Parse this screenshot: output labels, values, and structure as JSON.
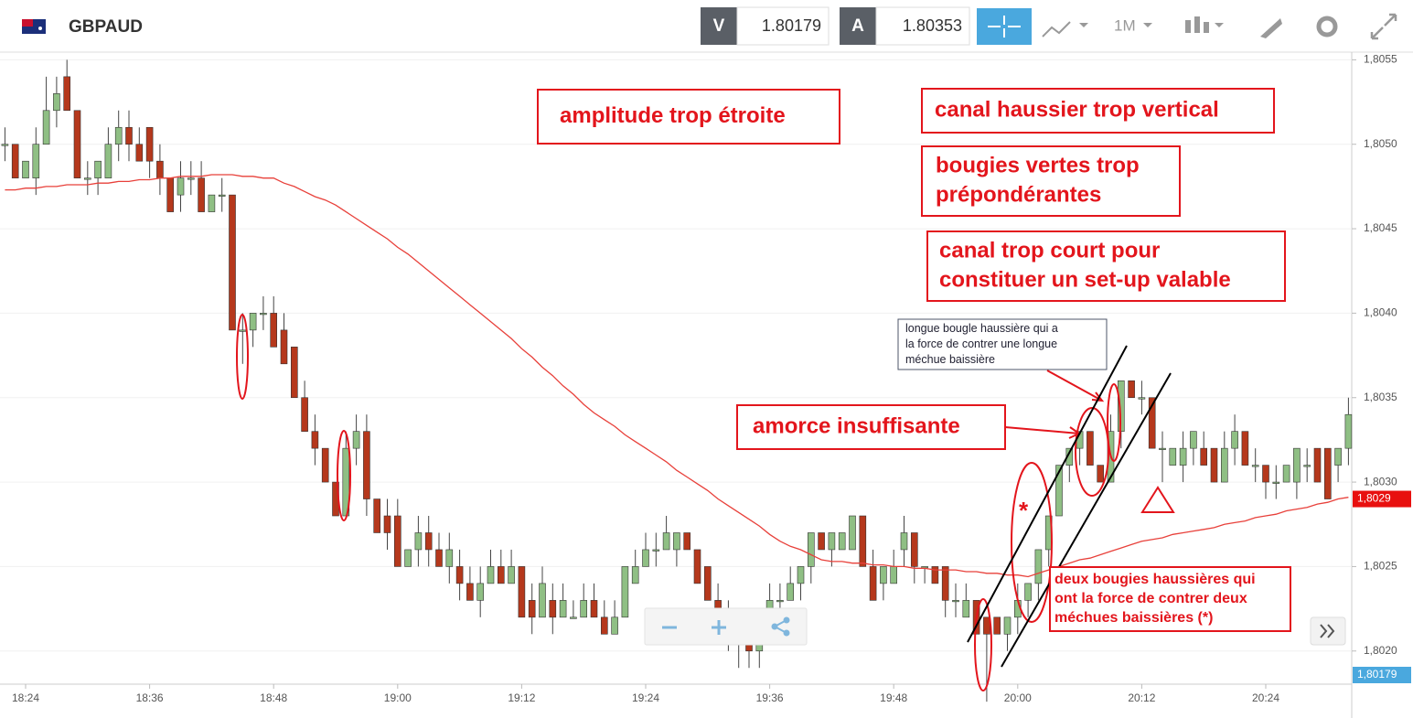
{
  "header": {
    "symbol": "GBPAUD",
    "bid_label": "V",
    "bid": 1.80179,
    "ask_label": "A",
    "ask": 1.80353,
    "timeframe": "1M"
  },
  "chart_data": {
    "type": "candlestick",
    "categories": [
      null,
      null,
      "18:24",
      null,
      null,
      null,
      null,
      null,
      null,
      null,
      null,
      null,
      null,
      null,
      "18:36",
      null,
      null,
      null,
      null,
      null,
      null,
      null,
      null,
      null,
      null,
      null,
      "18:48",
      null,
      null,
      null,
      null,
      null,
      null,
      null,
      null,
      null,
      null,
      null,
      "19:00",
      null,
      null,
      null,
      null,
      null,
      null,
      null,
      null,
      null,
      null,
      null,
      "19:12",
      null,
      null,
      null,
      null,
      null,
      null,
      null,
      null,
      null,
      null,
      null,
      "19:24",
      null,
      null,
      null,
      null,
      null,
      null,
      null,
      null,
      null,
      null,
      null,
      "19:36",
      null,
      null,
      null,
      null,
      null,
      null,
      null,
      null,
      null,
      null,
      null,
      "19:48",
      null,
      null,
      null,
      null,
      null,
      null,
      null,
      null,
      null,
      null,
      null,
      "20:00",
      null,
      null,
      null,
      null,
      null,
      null,
      null,
      null,
      null,
      null,
      null,
      "20:12",
      null,
      null,
      null,
      null,
      null,
      null,
      null,
      null,
      null,
      null,
      null,
      "20:24",
      null,
      null,
      null,
      null,
      null,
      null,
      null,
      null
    ],
    "ohlc": [
      [
        1.805,
        1.8051,
        1.8049,
        1.805
      ],
      [
        1.805,
        1.805,
        1.8048,
        1.8048
      ],
      [
        1.8048,
        1.8049,
        1.8048,
        1.8049
      ],
      [
        1.8048,
        1.8051,
        1.8047,
        1.805
      ],
      [
        1.805,
        1.8054,
        1.805,
        1.8052
      ],
      [
        1.8052,
        1.8054,
        1.8051,
        1.8053
      ],
      [
        1.8054,
        1.8055,
        1.8052,
        1.8052
      ],
      [
        1.8052,
        1.8052,
        1.8048,
        1.8048
      ],
      [
        1.8048,
        1.8049,
        1.8047,
        1.8048
      ],
      [
        1.8048,
        1.8049,
        1.8047,
        1.8049
      ],
      [
        1.8048,
        1.8051,
        1.8048,
        1.805
      ],
      [
        1.805,
        1.8052,
        1.8049,
        1.8051
      ],
      [
        1.8051,
        1.8052,
        1.8049,
        1.805
      ],
      [
        1.805,
        1.8051,
        1.8049,
        1.8049
      ],
      [
        1.8051,
        1.8051,
        1.8048,
        1.8049
      ],
      [
        1.8049,
        1.805,
        1.8047,
        1.8048
      ],
      [
        1.8048,
        1.8048,
        1.8046,
        1.8046
      ],
      [
        1.8047,
        1.8049,
        1.8046,
        1.8048
      ],
      [
        1.8048,
        1.8049,
        1.8047,
        1.8048
      ],
      [
        1.8048,
        1.8049,
        1.8046,
        1.8046
      ],
      [
        1.8046,
        1.8047,
        1.8046,
        1.8047
      ],
      [
        1.8047,
        1.8048,
        1.8046,
        1.8047
      ],
      [
        1.8047,
        1.8047,
        1.8039,
        1.8039
      ],
      [
        1.8039,
        1.804,
        1.8037,
        1.8039
      ],
      [
        1.8039,
        1.804,
        1.8038,
        1.804
      ],
      [
        1.804,
        1.8041,
        1.8039,
        1.804
      ],
      [
        1.804,
        1.8041,
        1.8038,
        1.8038
      ],
      [
        1.8039,
        1.804,
        1.8037,
        1.8037
      ],
      [
        1.8038,
        1.8038,
        1.8035,
        1.8035
      ],
      [
        1.8035,
        1.8036,
        1.8033,
        1.8033
      ],
      [
        1.8033,
        1.8034,
        1.8031,
        1.8032
      ],
      [
        1.8032,
        1.8032,
        1.803,
        1.803
      ],
      [
        1.803,
        1.803,
        1.8028,
        1.8028
      ],
      [
        1.8028,
        1.8033,
        1.8028,
        1.8032
      ],
      [
        1.8032,
        1.8034,
        1.8031,
        1.8033
      ],
      [
        1.8033,
        1.8034,
        1.8028,
        1.8029
      ],
      [
        1.8029,
        1.8029,
        1.8027,
        1.8027
      ],
      [
        1.8028,
        1.8029,
        1.8026,
        1.8027
      ],
      [
        1.8028,
        1.8029,
        1.8025,
        1.8025
      ],
      [
        1.8025,
        1.8026,
        1.8025,
        1.8026
      ],
      [
        1.8026,
        1.8028,
        1.8025,
        1.8027
      ],
      [
        1.8027,
        1.8028,
        1.8025,
        1.8026
      ],
      [
        1.8026,
        1.8027,
        1.8025,
        1.8025
      ],
      [
        1.8025,
        1.8027,
        1.8024,
        1.8026
      ],
      [
        1.8025,
        1.8026,
        1.8023,
        1.8024
      ],
      [
        1.8024,
        1.8025,
        1.8023,
        1.8023
      ],
      [
        1.8023,
        1.8025,
        1.8022,
        1.8024
      ],
      [
        1.8024,
        1.8026,
        1.8024,
        1.8025
      ],
      [
        1.8025,
        1.8026,
        1.8024,
        1.8024
      ],
      [
        1.8024,
        1.8026,
        1.8024,
        1.8025
      ],
      [
        1.8025,
        1.8025,
        1.8022,
        1.8022
      ],
      [
        1.8023,
        1.8024,
        1.8021,
        1.8022
      ],
      [
        1.8022,
        1.8025,
        1.8022,
        1.8024
      ],
      [
        1.8023,
        1.8024,
        1.8021,
        1.8022
      ],
      [
        1.8022,
        1.8024,
        1.8022,
        1.8023
      ],
      [
        1.8022,
        1.8023,
        1.8022,
        1.8022
      ],
      [
        1.8022,
        1.8024,
        1.8022,
        1.8023
      ],
      [
        1.8023,
        1.8024,
        1.8022,
        1.8022
      ],
      [
        1.8022,
        1.8023,
        1.8021,
        1.8021
      ],
      [
        1.8021,
        1.8023,
        1.8021,
        1.8022
      ],
      [
        1.8022,
        1.8025,
        1.8022,
        1.8025
      ],
      [
        1.8024,
        1.8026,
        1.8024,
        1.8025
      ],
      [
        1.8025,
        1.8027,
        1.8025,
        1.8026
      ],
      [
        1.8026,
        1.8027,
        1.8025,
        1.8026
      ],
      [
        1.8026,
        1.8028,
        1.8026,
        1.8027
      ],
      [
        1.8026,
        1.8027,
        1.8025,
        1.8027
      ],
      [
        1.8027,
        1.8027,
        1.8026,
        1.8026
      ],
      [
        1.8026,
        1.8026,
        1.8024,
        1.8024
      ],
      [
        1.8025,
        1.8025,
        1.8023,
        1.8023
      ],
      [
        1.8023,
        1.8024,
        1.8022,
        1.8022
      ],
      [
        1.8022,
        1.8023,
        1.802,
        1.8021
      ],
      [
        1.8021,
        1.8022,
        1.8019,
        1.8021
      ],
      [
        1.8021,
        1.8022,
        1.8019,
        1.802
      ],
      [
        1.802,
        1.8022,
        1.8019,
        1.8022
      ],
      [
        1.8022,
        1.8024,
        1.8021,
        1.8023
      ],
      [
        1.8023,
        1.8024,
        1.8022,
        1.8023
      ],
      [
        1.8023,
        1.8025,
        1.8023,
        1.8024
      ],
      [
        1.8024,
        1.8025,
        1.8023,
        1.8025
      ],
      [
        1.8025,
        1.8027,
        1.8024,
        1.8027
      ],
      [
        1.8027,
        1.8027,
        1.8026,
        1.8026
      ],
      [
        1.8026,
        1.8027,
        1.8025,
        1.8027
      ],
      [
        1.8026,
        1.8027,
        1.8026,
        1.8027
      ],
      [
        1.8026,
        1.8028,
        1.8026,
        1.8028
      ],
      [
        1.8028,
        1.8028,
        1.8025,
        1.8025
      ],
      [
        1.8025,
        1.8026,
        1.8023,
        1.8023
      ],
      [
        1.8024,
        1.8025,
        1.8023,
        1.8025
      ],
      [
        1.8024,
        1.8026,
        1.8024,
        1.8025
      ],
      [
        1.8026,
        1.8028,
        1.8025,
        1.8027
      ],
      [
        1.8027,
        1.8027,
        1.8024,
        1.8025
      ],
      [
        1.8025,
        1.8025,
        1.8024,
        1.8025
      ],
      [
        1.8025,
        1.8025,
        1.8024,
        1.8024
      ],
      [
        1.8025,
        1.8025,
        1.8022,
        1.8023
      ],
      [
        1.8023,
        1.8024,
        1.8022,
        1.8023
      ],
      [
        1.8022,
        1.8024,
        1.8022,
        1.8023
      ],
      [
        1.8023,
        1.8023,
        1.8021,
        1.8021
      ],
      [
        1.8022,
        1.8022,
        1.8017,
        1.8021
      ],
      [
        1.8022,
        1.8022,
        1.8021,
        1.8021
      ],
      [
        1.8021,
        1.8022,
        1.802,
        1.8022
      ],
      [
        1.8022,
        1.8024,
        1.8021,
        1.8023
      ],
      [
        1.8023,
        1.8024,
        1.8022,
        1.8024
      ],
      [
        1.8024,
        1.8026,
        1.8023,
        1.8026
      ],
      [
        1.8026,
        1.8028,
        1.8025,
        1.8028
      ],
      [
        1.8028,
        1.8031,
        1.8028,
        1.8031
      ],
      [
        1.8031,
        1.8032,
        1.803,
        1.8032
      ],
      [
        1.8032,
        1.8033,
        1.8031,
        1.8033
      ],
      [
        1.8033,
        1.8033,
        1.8031,
        1.8031
      ],
      [
        1.8031,
        1.8031,
        1.803,
        1.803
      ],
      [
        1.803,
        1.8034,
        1.803,
        1.8033
      ],
      [
        1.8033,
        1.8036,
        1.8032,
        1.8036
      ],
      [
        1.8036,
        1.8036,
        1.8035,
        1.8035
      ],
      [
        1.8035,
        1.8036,
        1.8034,
        1.8035
      ],
      [
        1.8035,
        1.8035,
        1.8032,
        1.8032
      ],
      [
        1.8032,
        1.8033,
        1.803,
        1.8032
      ],
      [
        1.8031,
        1.8032,
        1.8031,
        1.8032
      ],
      [
        1.8031,
        1.8033,
        1.803,
        1.8032
      ],
      [
        1.8032,
        1.8033,
        1.8031,
        1.8033
      ],
      [
        1.8032,
        1.8033,
        1.8031,
        1.8031
      ],
      [
        1.8032,
        1.8032,
        1.803,
        1.803
      ],
      [
        1.803,
        1.8033,
        1.803,
        1.8032
      ],
      [
        1.8032,
        1.8034,
        1.8031,
        1.8033
      ],
      [
        1.8033,
        1.8033,
        1.8031,
        1.8031
      ],
      [
        1.8031,
        1.8032,
        1.803,
        1.8031
      ],
      [
        1.8031,
        1.8031,
        1.8029,
        1.803
      ],
      [
        1.803,
        1.8031,
        1.8029,
        1.803
      ],
      [
        1.803,
        1.8031,
        1.803,
        1.8031
      ],
      [
        1.803,
        1.8032,
        1.8029,
        1.8032
      ],
      [
        1.8031,
        1.8032,
        1.803,
        1.8031
      ],
      [
        1.8032,
        1.8032,
        1.803,
        1.803
      ],
      [
        1.8032,
        1.8032,
        1.8029,
        1.8029
      ],
      [
        1.8031,
        1.8032,
        1.803,
        1.8032
      ],
      [
        1.8032,
        1.8035,
        1.8031,
        1.8034
      ]
    ],
    "up_color": "#8fbf84",
    "down_color": "#b5381c",
    "overlay": {
      "color": "#e8403a",
      "values": [
        1.80473,
        1.80473,
        1.80474,
        1.80474,
        1.80475,
        1.80475,
        1.80476,
        1.80476,
        1.80476,
        1.80477,
        1.80477,
        1.80478,
        1.80478,
        1.80479,
        1.80479,
        1.8048,
        1.8048,
        1.80481,
        1.80481,
        1.80481,
        1.80482,
        1.80482,
        1.80482,
        1.80481,
        1.80481,
        1.8048,
        1.8048,
        1.80477,
        1.80475,
        1.80472,
        1.80469,
        1.80467,
        1.80464,
        1.8046,
        1.80456,
        1.80452,
        1.80448,
        1.80444,
        1.80439,
        1.80435,
        1.8043,
        1.80425,
        1.8042,
        1.80415,
        1.8041,
        1.80405,
        1.804,
        1.80395,
        1.8039,
        1.80385,
        1.80379,
        1.80374,
        1.80368,
        1.80363,
        1.80357,
        1.80352,
        1.80346,
        1.80341,
        1.80337,
        1.80333,
        1.80328,
        1.80324,
        1.8032,
        1.80316,
        1.80312,
        1.80307,
        1.80303,
        1.80299,
        1.80295,
        1.8029,
        1.80286,
        1.80282,
        1.80278,
        1.80274,
        1.80269,
        1.80265,
        1.80262,
        1.8026,
        1.80257,
        1.80254,
        1.80253,
        1.80253,
        1.80252,
        1.80252,
        1.80251,
        1.80251,
        1.8025,
        1.8025,
        1.80249,
        1.80249,
        1.80248,
        1.80248,
        1.80248,
        1.80247,
        1.80247,
        1.80246,
        1.80246,
        1.80245,
        1.80245,
        1.80244,
        1.80246,
        1.80248,
        1.8025,
        1.80252,
        1.80254,
        1.80255,
        1.80257,
        1.80259,
        1.80261,
        1.80263,
        1.80265,
        1.80266,
        1.80267,
        1.80269,
        1.8027,
        1.80271,
        1.80272,
        1.80273,
        1.80275,
        1.80276,
        1.80277,
        1.80279,
        1.8028,
        1.80281,
        1.80283,
        1.80284,
        1.80285,
        1.80287,
        1.80288,
        1.8029,
        1.80291
      ]
    },
    "ylim": [
      1.80182,
      1.80554
    ],
    "yticks": [
      {
        "value": 1.802,
        "label": "1,8020"
      },
      {
        "value": 1.8025,
        "label": "1,8025"
      },
      {
        "value": 1.803,
        "label": "1,8030"
      },
      {
        "value": 1.8035,
        "label": "1,8035"
      },
      {
        "value": 1.804,
        "label": "1,8040"
      },
      {
        "value": 1.8045,
        "label": "1,8045"
      },
      {
        "value": 1.805,
        "label": "1,8050"
      },
      {
        "value": 1.8055,
        "label": "1,8055"
      }
    ],
    "grid": true,
    "price_tags": [
      {
        "value": 1.8029,
        "label": "1,8029",
        "color": "#e8100f"
      },
      {
        "value": 1.80179,
        "label": "1,80179",
        "color": "#4aa8de"
      }
    ],
    "annotations": [
      {
        "lines": [
          "amplitude trop étroite"
        ]
      },
      {
        "lines": [
          "canal haussier trop vertical"
        ]
      },
      {
        "lines": [
          "bougies vertes trop",
          "prépondérantes"
        ]
      },
      {
        "lines": [
          "canal trop court pour",
          "constituer un set-up valable"
        ]
      },
      {
        "lines": [
          "longue  bougle haussière qui a",
          "la force de contrer une longue",
          "méchue baissière"
        ]
      },
      {
        "lines": [
          "amorce insuffisante"
        ]
      },
      {
        "lines": [
          "deux bougies haussières qui",
          "ont la force de contrer deux",
          "méchues baissières (*)"
        ]
      },
      {
        "lines": [
          "*"
        ]
      }
    ]
  }
}
